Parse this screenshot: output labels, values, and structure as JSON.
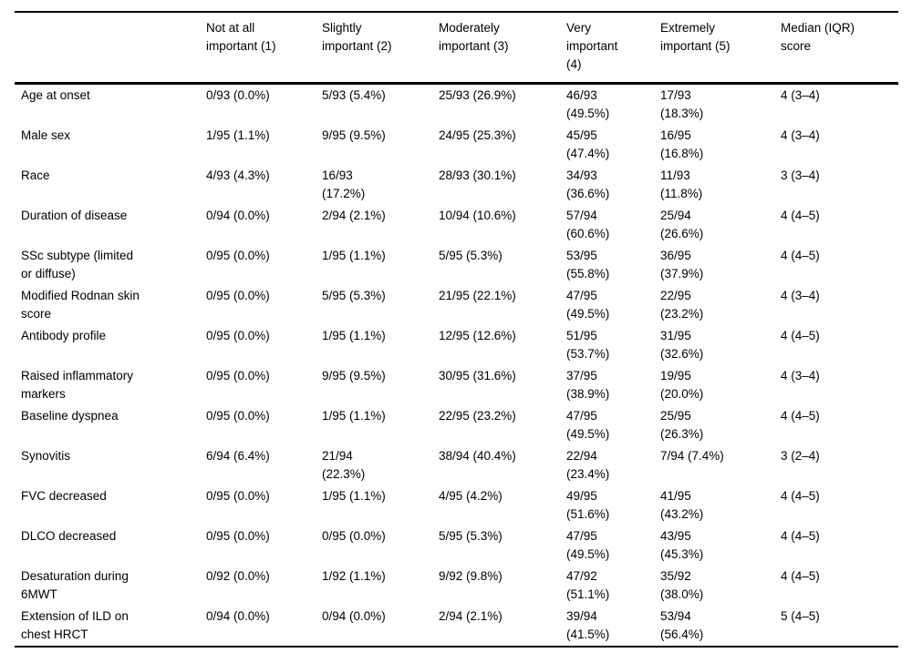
{
  "table": {
    "columns": [
      "",
      "Not at all important (1)",
      "Slightly important (2)",
      "Moderately important (3)",
      "Very important (4)",
      "Extremely important (5)",
      "Median (IQR) score"
    ],
    "rows": [
      {
        "label": "Age at onset",
        "cells": [
          "0/93 (0.0%)",
          "5/93 (5.4%)",
          "25/93 (26.9%)",
          "46/93 (49.5%)",
          "17/93 (18.3%)",
          "4 (3–4)"
        ]
      },
      {
        "label": "Male sex",
        "cells": [
          "1/95 (1.1%)",
          "9/95 (9.5%)",
          "24/95 (25.3%)",
          "45/95 (47.4%)",
          "16/95 (16.8%)",
          "4 (3–4)"
        ]
      },
      {
        "label": "Race",
        "cells": [
          "4/93 (4.3%)",
          "16/93 (17.2%)",
          "28/93 (30.1%)",
          "34/93 (36.6%)",
          "11/93 (11.8%)",
          "3 (3–4)"
        ]
      },
      {
        "label": "Duration of disease",
        "cells": [
          "0/94 (0.0%)",
          "2/94 (2.1%)",
          "10/94 (10.6%)",
          "57/94 (60.6%)",
          "25/94 (26.6%)",
          "4 (4–5)"
        ]
      },
      {
        "label": "SSc subtype (limited or diffuse)",
        "cells": [
          "0/95 (0.0%)",
          "1/95 (1.1%)",
          "5/95 (5.3%)",
          "53/95 (55.8%)",
          "36/95 (37.9%)",
          "4 (4–5)"
        ]
      },
      {
        "label": "Modified Rodnan skin score",
        "cells": [
          "0/95 (0.0%)",
          "5/95 (5.3%)",
          "21/95 (22.1%)",
          "47/95 (49.5%)",
          "22/95 (23.2%)",
          "4 (3–4)"
        ]
      },
      {
        "label": "Antibody profile",
        "cells": [
          "0/95 (0.0%)",
          "1/95 (1.1%)",
          "12/95 (12.6%)",
          "51/95 (53.7%)",
          "31/95 (32.6%)",
          "4 (4–5)"
        ]
      },
      {
        "label": "Raised inflammatory markers",
        "cells": [
          "0/95 (0.0%)",
          "9/95 (9.5%)",
          "30/95 (31.6%)",
          "37/95 (38.9%)",
          "19/95 (20.0%)",
          "4 (3–4)"
        ]
      },
      {
        "label": "Baseline dyspnea",
        "cells": [
          "0/95 (0.0%)",
          "1/95 (1.1%)",
          "22/95 (23.2%)",
          "47/95 (49.5%)",
          "25/95 (26.3%)",
          "4 (4–5)"
        ]
      },
      {
        "label": "Synovitis",
        "cells": [
          "6/94 (6.4%)",
          "21/94 (22.3%)",
          "38/94 (40.4%)",
          "22/94 (23.4%)",
          "7/94 (7.4%)",
          "3 (2–4)"
        ]
      },
      {
        "label": "FVC decreased",
        "cells": [
          "0/95 (0.0%)",
          "1/95 (1.1%)",
          "4/95 (4.2%)",
          "49/95 (51.6%)",
          "41/95 (43.2%)",
          "4 (4–5)"
        ]
      },
      {
        "label": "DLCO decreased",
        "cells": [
          "0/95 (0.0%)",
          "0/95 (0.0%)",
          "5/95 (5.3%)",
          "47/95 (49.5%)",
          "43/95 (45.3%)",
          "4 (4–5)"
        ]
      },
      {
        "label": "Desaturation during 6MWT",
        "cells": [
          "0/92 (0.0%)",
          "1/92 (1.1%)",
          "9/92 (9.8%)",
          "47/92 (51.1%)",
          "35/92 (38.0%)",
          "4 (4–5)"
        ]
      },
      {
        "label": "Extension of ILD on chest HRCT",
        "cells": [
          "0/94 (0.0%)",
          "0/94 (0.0%)",
          "2/94 (2.1%)",
          "39/94 (41.5%)",
          "53/94 (56.4%)",
          "5 (4–5)"
        ]
      }
    ]
  }
}
